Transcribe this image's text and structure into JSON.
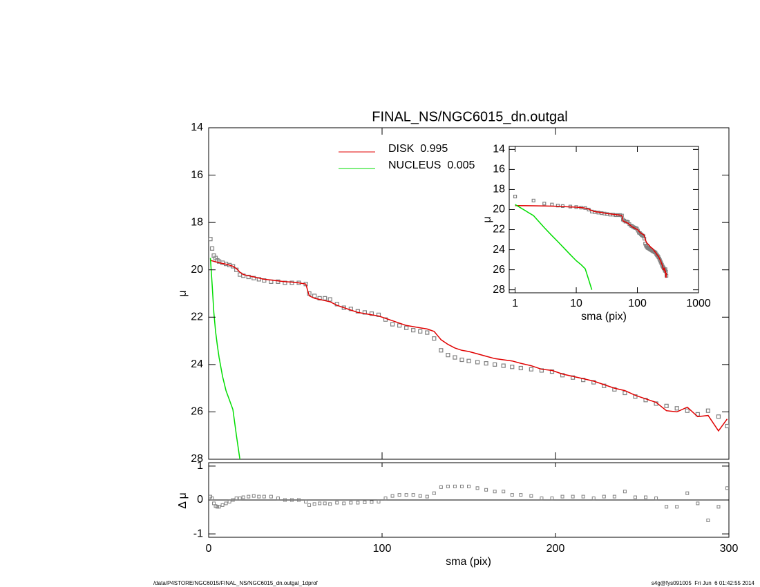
{
  "footer_left": "/data/P4STORE/NGC6015/FINAL_NS/NGC6015_dn.outgal_1dprof",
  "footer_right": "s4g@fys091005  Fri Jun  6 01:42:55 2014",
  "chart_data": [
    {
      "type": "line",
      "title": "FINAL_NS/NGC6015_dn.outgal",
      "ylabel": "μ",
      "xlim": [
        0,
        300
      ],
      "ylim": [
        14,
        28
      ],
      "y_reversed": true,
      "yticks": [
        14,
        16,
        18,
        20,
        22,
        24,
        26,
        28
      ],
      "x": [
        1,
        2,
        3,
        4,
        5,
        6,
        8,
        10,
        12,
        14,
        16,
        18,
        20,
        23,
        26,
        29,
        32,
        36,
        40,
        44,
        48,
        52,
        56,
        58,
        61,
        64,
        67,
        70,
        74,
        78,
        82,
        86,
        90,
        94,
        98,
        102,
        106,
        110,
        114,
        118,
        122,
        126,
        130,
        134,
        138,
        142,
        146,
        150,
        155,
        160,
        165,
        170,
        175,
        180,
        186,
        192,
        198,
        204,
        210,
        216,
        222,
        228,
        234,
        240,
        246,
        252,
        258,
        264,
        270,
        276,
        282,
        288,
        294,
        299
      ],
      "series": [
        {
          "color": "#808080",
          "marker": "square",
          "values": [
            18.7,
            19.1,
            19.4,
            19.5,
            19.6,
            19.65,
            19.7,
            19.75,
            19.8,
            19.85,
            20.0,
            20.2,
            20.25,
            20.3,
            20.35,
            20.4,
            20.45,
            20.5,
            20.5,
            20.55,
            20.55,
            20.55,
            20.6,
            21.0,
            21.1,
            21.2,
            21.2,
            21.25,
            21.45,
            21.6,
            21.65,
            21.75,
            21.8,
            21.85,
            21.9,
            22.1,
            22.3,
            22.35,
            22.45,
            22.55,
            22.6,
            22.65,
            22.9,
            23.4,
            23.6,
            23.7,
            23.8,
            23.85,
            23.9,
            23.95,
            24.0,
            24.05,
            24.1,
            24.15,
            24.2,
            24.25,
            24.3,
            24.45,
            24.55,
            24.65,
            24.75,
            24.9,
            25.05,
            25.2,
            25.35,
            25.5,
            25.65,
            25.75,
            25.85,
            25.95,
            26.1,
            25.95,
            26.2,
            26.6
          ]
        },
        {
          "name": "DISK  0.995",
          "color": "#e00000",
          "values": [
            19.6,
            19.62,
            19.64,
            19.66,
            19.68,
            19.7,
            19.73,
            19.76,
            19.8,
            19.85,
            19.95,
            20.1,
            20.2,
            20.25,
            20.3,
            20.35,
            20.4,
            20.43,
            20.47,
            20.5,
            20.52,
            20.55,
            20.6,
            21.1,
            21.2,
            21.25,
            21.3,
            21.35,
            21.5,
            21.6,
            21.7,
            21.8,
            21.85,
            21.9,
            21.95,
            22.05,
            22.15,
            22.25,
            22.35,
            22.4,
            22.45,
            22.5,
            22.6,
            22.95,
            23.15,
            23.3,
            23.4,
            23.45,
            23.55,
            23.65,
            23.75,
            23.8,
            23.85,
            23.95,
            24.05,
            24.2,
            24.25,
            24.4,
            24.5,
            24.6,
            24.7,
            24.85,
            25.0,
            25.1,
            25.3,
            25.45,
            25.6,
            25.95,
            26.0,
            25.8,
            26.2,
            26.15,
            26.8,
            26.3
          ]
        },
        {
          "name": "NUCLEUS  0.005",
          "color": "#00dd00",
          "values": [
            19.5,
            20.6,
            21.8,
            22.6,
            23.2,
            23.7,
            24.5,
            25.1,
            25.5,
            25.9,
            27.0,
            28.0,
            null,
            null,
            null,
            null,
            null,
            null,
            null,
            null,
            null,
            null,
            null,
            null,
            null,
            null,
            null,
            null,
            null,
            null,
            null,
            null,
            null,
            null,
            null,
            null,
            null,
            null,
            null,
            null,
            null,
            null,
            null,
            null,
            null,
            null,
            null,
            null,
            null,
            null,
            null,
            null,
            null,
            null,
            null,
            null,
            null,
            null,
            null,
            null,
            null,
            null,
            null,
            null,
            null,
            null,
            null,
            null,
            null,
            null,
            null,
            null,
            null,
            null
          ]
        }
      ]
    },
    {
      "type": "scatter",
      "ylabel": "Δ μ",
      "xlabel": "sma (pix)",
      "xlim": [
        0,
        300
      ],
      "xticks": [
        0,
        100,
        200,
        300
      ],
      "ylim": [
        -1.1,
        1.1
      ],
      "yticks": [
        -1,
        0,
        1
      ],
      "reference_line": 0,
      "color": "#808080",
      "values": [
        0.1,
        0.05,
        -0.1,
        -0.18,
        -0.2,
        -0.2,
        -0.15,
        -0.1,
        -0.05,
        0.0,
        0.05,
        0.05,
        0.08,
        0.1,
        0.12,
        0.1,
        0.1,
        0.1,
        0.05,
        0.0,
        0.0,
        0.0,
        -0.05,
        -0.15,
        -0.12,
        -0.1,
        -0.1,
        -0.12,
        -0.08,
        -0.1,
        -0.08,
        -0.08,
        -0.07,
        -0.06,
        -0.05,
        0.05,
        0.12,
        0.15,
        0.15,
        0.15,
        0.12,
        0.1,
        0.2,
        0.38,
        0.4,
        0.4,
        0.4,
        0.4,
        0.35,
        0.3,
        0.25,
        0.25,
        0.15,
        0.15,
        0.12,
        0.05,
        0.05,
        0.1,
        0.1,
        0.1,
        0.05,
        0.1,
        0.1,
        0.25,
        0.08,
        0.08,
        0.05,
        -0.2,
        -0.2,
        0.2,
        -0.1,
        -0.6,
        -0.2,
        0.35
      ]
    },
    {
      "type": "line",
      "xlabel": "sma (pix)",
      "ylabel": "μ",
      "log_x": true,
      "xlim": [
        0.8,
        1000
      ],
      "xticks": [
        1,
        10,
        100,
        1000
      ],
      "ylim": [
        13.7,
        28.3
      ],
      "y_reversed": true,
      "yticks": [
        14,
        16,
        18,
        20,
        22,
        24,
        26,
        28
      ]
    }
  ]
}
